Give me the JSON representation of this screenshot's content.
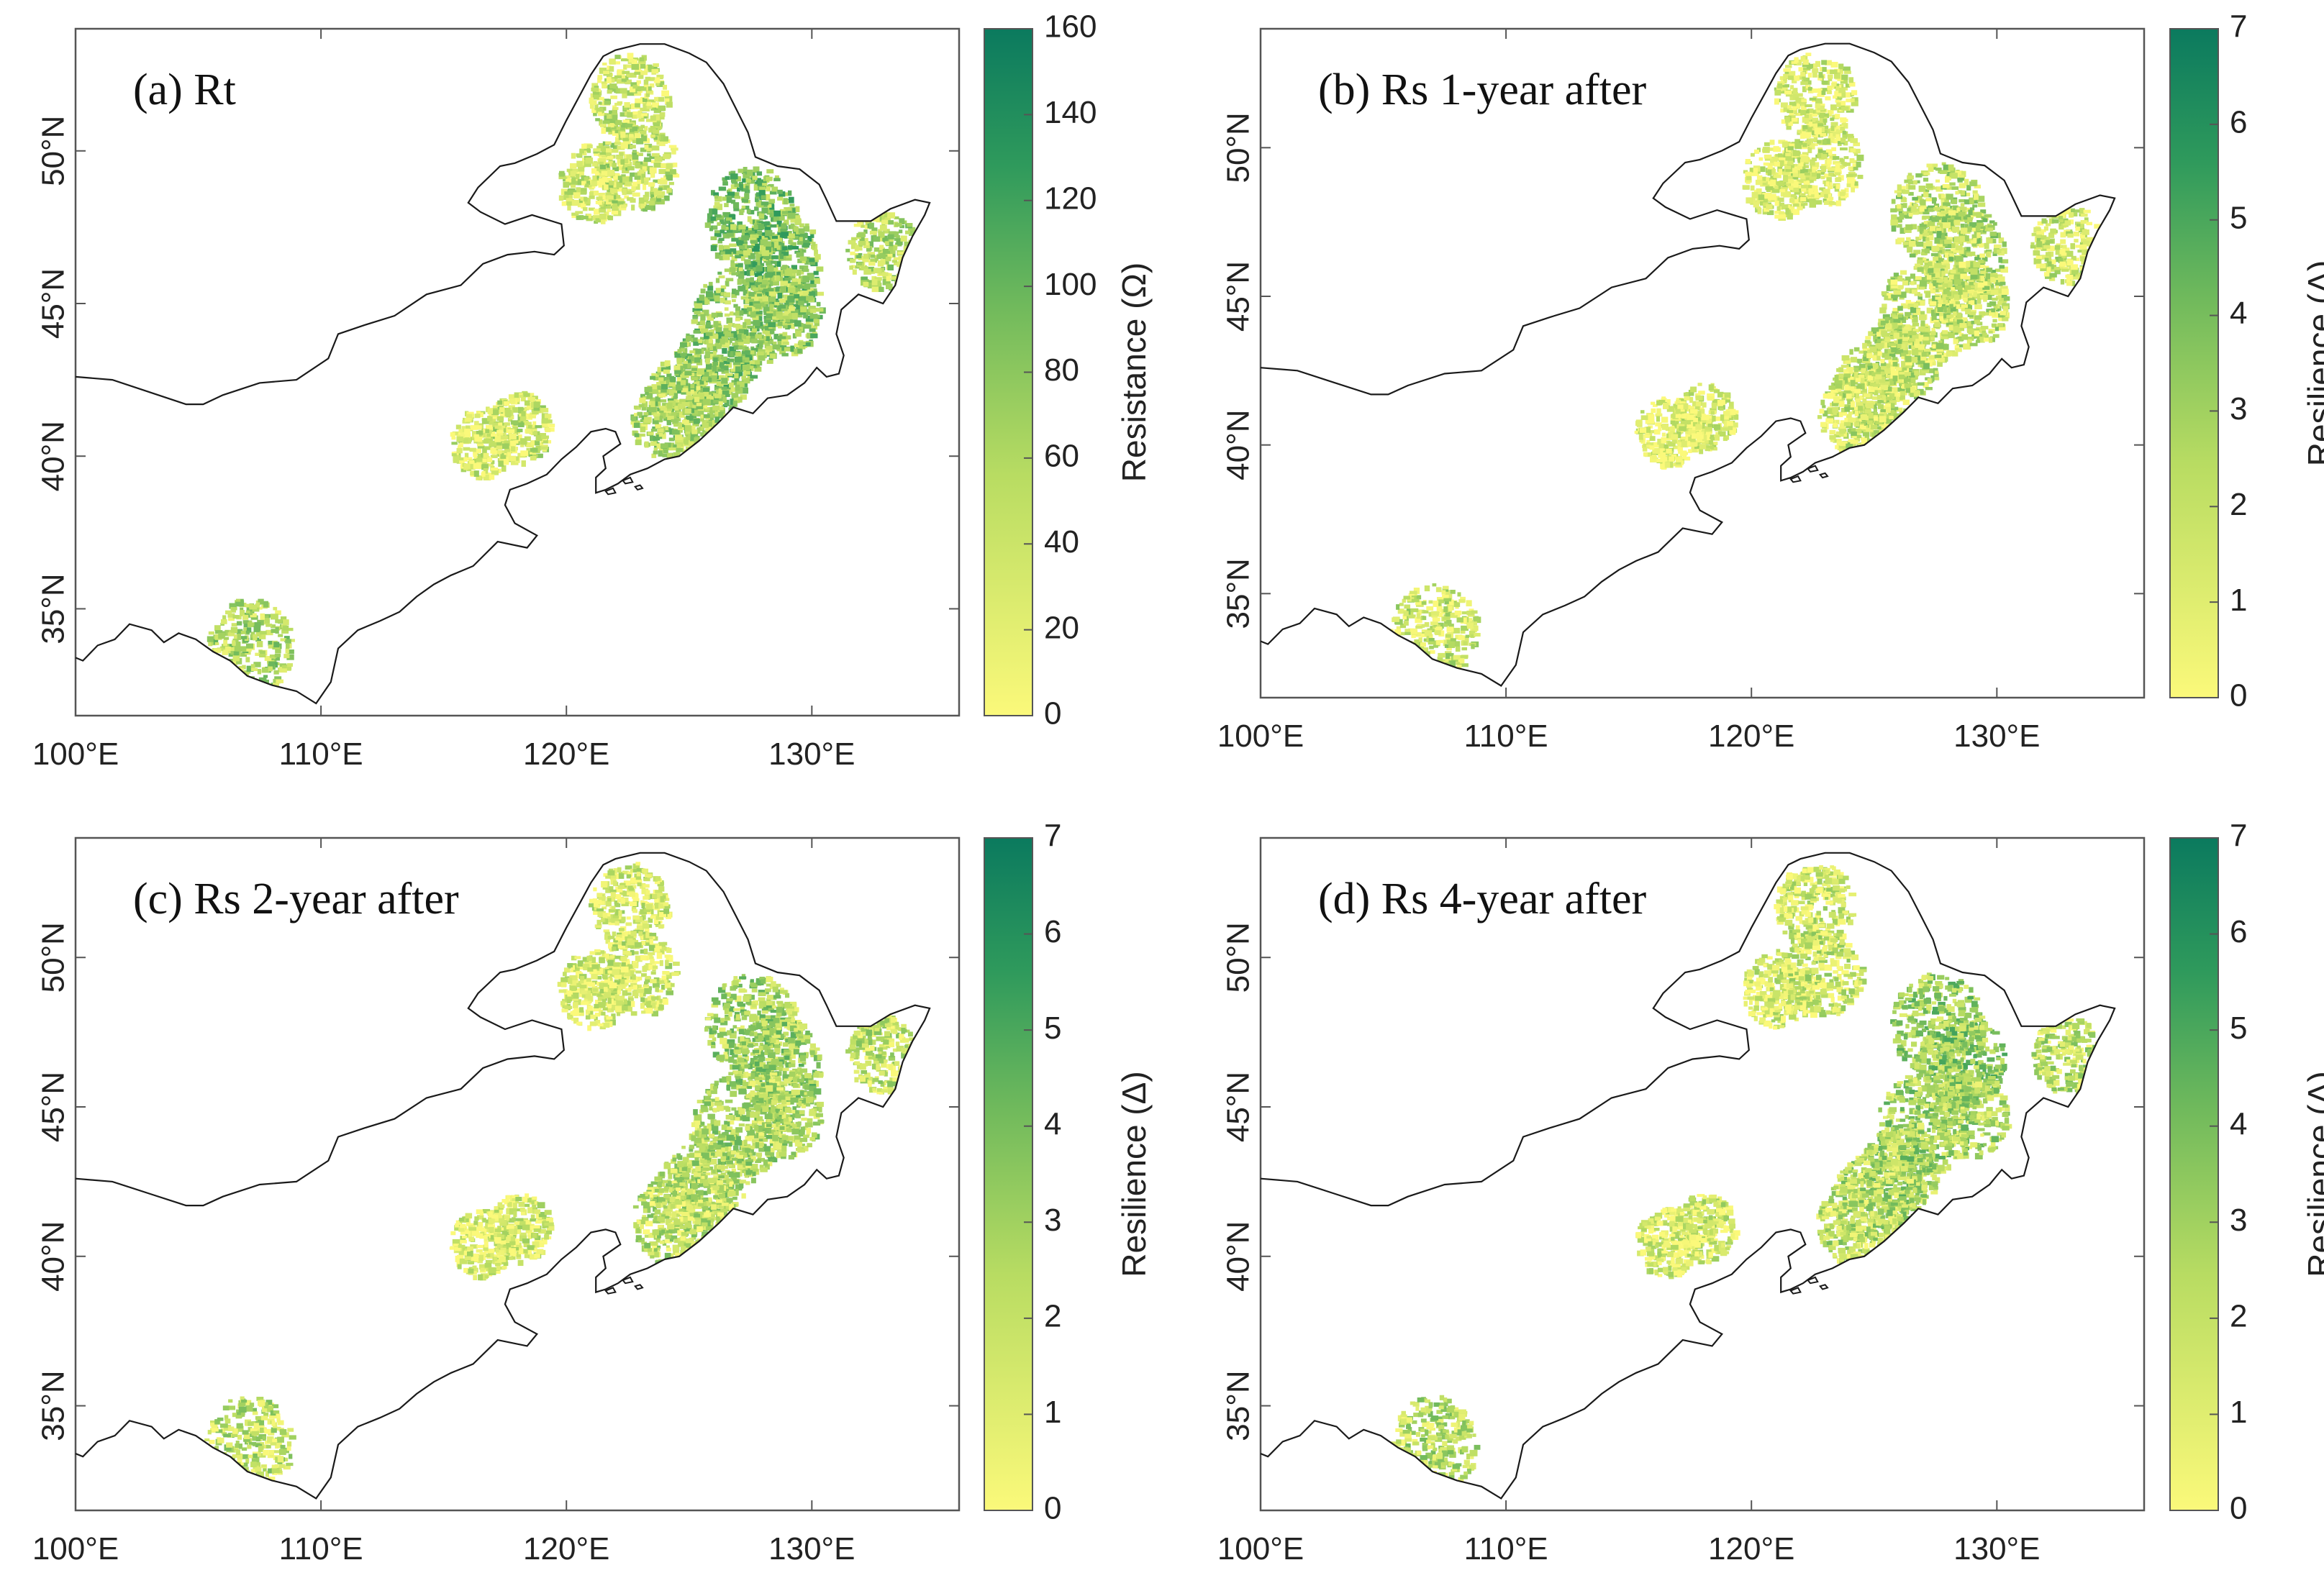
{
  "colors": {
    "low": "#fbf97a",
    "mid": "#7cc05f",
    "high": "#0b7a5e",
    "border": "#1a1a1a",
    "frame": "#555555"
  },
  "x_ticks": [
    "100°E",
    "110°E",
    "120°E",
    "130°E"
  ],
  "y_ticks": [
    "35°N",
    "40°N",
    "45°N",
    "50°N"
  ],
  "chart_data": [
    {
      "type": "map",
      "panel": "a",
      "title": "(a) Rt",
      "colorbar": {
        "label": "Resistance (Ω)",
        "min": 0,
        "max": 160,
        "ticks": [
          "0",
          "20",
          "40",
          "60",
          "80",
          "100",
          "120",
          "140",
          "160"
        ]
      },
      "xlim": [
        100,
        136
      ],
      "ylim": [
        31.5,
        54
      ],
      "hotspot_intensity": 0.65
    },
    {
      "type": "map",
      "panel": "b",
      "title": "(b) Rs 1-year after",
      "colorbar": {
        "label": "Resilience (Δ)",
        "min": 0,
        "max": 7,
        "ticks": [
          "0",
          "1",
          "2",
          "3",
          "4",
          "5",
          "6",
          "7"
        ]
      },
      "xlim": [
        100,
        136
      ],
      "ylim": [
        31.5,
        54
      ],
      "hotspot_intensity": 0.4
    },
    {
      "type": "map",
      "panel": "c",
      "title": "(c) Rs 2-year after",
      "colorbar": {
        "label": "Resilience (Δ)",
        "min": 0,
        "max": 7,
        "ticks": [
          "0",
          "1",
          "2",
          "3",
          "4",
          "5",
          "6",
          "7"
        ]
      },
      "xlim": [
        100,
        136
      ],
      "ylim": [
        31.5,
        54
      ],
      "hotspot_intensity": 0.5
    },
    {
      "type": "map",
      "panel": "d",
      "title": "(d) Rs 4-year after",
      "colorbar": {
        "label": "Resilience (Δ)",
        "min": 0,
        "max": 7,
        "ticks": [
          "0",
          "1",
          "2",
          "3",
          "4",
          "5",
          "6",
          "7"
        ]
      },
      "xlim": [
        100,
        136
      ],
      "ylim": [
        31.5,
        54
      ],
      "hotspot_intensity": 0.55
    }
  ]
}
